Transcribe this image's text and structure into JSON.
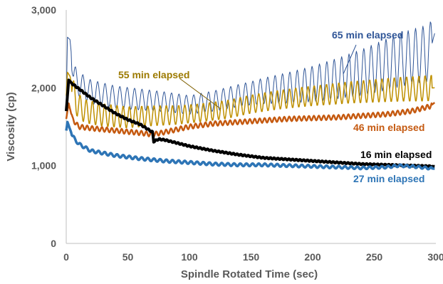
{
  "chart_data": {
    "type": "line",
    "xlabel": "Spindle Rotated Time (sec)",
    "ylabel": "Viscosity (cp)",
    "xlim": [
      0,
      300
    ],
    "ylim": [
      0,
      3000
    ],
    "x_ticks": [
      0,
      50,
      100,
      150,
      200,
      250,
      300
    ],
    "y_ticks": [
      0,
      1000,
      2000,
      3000
    ],
    "x_tick_labels": [
      "0",
      "50",
      "100",
      "150",
      "200",
      "250",
      "300"
    ],
    "y_tick_labels": [
      "0",
      "1,000",
      "2,000",
      "3,000"
    ],
    "grid": false,
    "series": [
      {
        "name": "65 min elapsed",
        "color": "#2f5597",
        "stroke_width": 1,
        "oscillation": {
          "period": 6,
          "amplitude": [
            [
              0,
              160
            ],
            [
              100,
              120
            ],
            [
              150,
              150
            ],
            [
              220,
              260
            ],
            [
              260,
              330
            ],
            [
              300,
              370
            ]
          ]
        },
        "points": [
          [
            0,
            1850
          ],
          [
            1,
            2650
          ],
          [
            3,
            2620
          ],
          [
            6,
            2150
          ],
          [
            10,
            2050
          ],
          [
            20,
            1950
          ],
          [
            40,
            1880
          ],
          [
            60,
            1850
          ],
          [
            80,
            1820
          ],
          [
            100,
            1780
          ],
          [
            120,
            1830
          ],
          [
            140,
            1900
          ],
          [
            160,
            1960
          ],
          [
            180,
            2000
          ],
          [
            200,
            2050
          ],
          [
            220,
            2120
          ],
          [
            240,
            2200
          ],
          [
            260,
            2300
          ],
          [
            280,
            2400
          ],
          [
            295,
            2450
          ],
          [
            299,
            2700
          ]
        ]
      },
      {
        "name": "55 min elapsed",
        "color": "#bf9000",
        "stroke_width": 1.5,
        "oscillation": {
          "period": 5,
          "amplitude": [
            [
              0,
              160
            ],
            [
              100,
              120
            ],
            [
              150,
              120
            ],
            [
              200,
              130
            ],
            [
              250,
              150
            ],
            [
              300,
              170
            ]
          ]
        },
        "points": [
          [
            0,
            1900
          ],
          [
            1,
            2200
          ],
          [
            3,
            2150
          ],
          [
            8,
            1800
          ],
          [
            15,
            1700
          ],
          [
            30,
            1650
          ],
          [
            50,
            1620
          ],
          [
            70,
            1640
          ],
          [
            90,
            1650
          ],
          [
            110,
            1680
          ],
          [
            130,
            1720
          ],
          [
            150,
            1790
          ],
          [
            170,
            1840
          ],
          [
            190,
            1880
          ],
          [
            210,
            1910
          ],
          [
            230,
            1940
          ],
          [
            250,
            1960
          ],
          [
            270,
            1980
          ],
          [
            290,
            1990
          ],
          [
            299,
            2000
          ]
        ]
      },
      {
        "name": "46 min elapsed",
        "color": "#c55a11",
        "stroke_width": 2.5,
        "oscillation": {
          "period": 4,
          "amplitude": [
            [
              0,
              30
            ],
            [
              300,
              30
            ]
          ]
        },
        "points": [
          [
            0,
            1600
          ],
          [
            2,
            1800
          ],
          [
            5,
            1600
          ],
          [
            10,
            1500
          ],
          [
            20,
            1480
          ],
          [
            40,
            1450
          ],
          [
            60,
            1420
          ],
          [
            70,
            1400
          ],
          [
            80,
            1430
          ],
          [
            100,
            1500
          ],
          [
            120,
            1540
          ],
          [
            140,
            1560
          ],
          [
            160,
            1580
          ],
          [
            180,
            1600
          ],
          [
            200,
            1610
          ],
          [
            220,
            1620
          ],
          [
            240,
            1640
          ],
          [
            260,
            1660
          ],
          [
            280,
            1700
          ],
          [
            295,
            1760
          ],
          [
            299,
            1810
          ]
        ]
      },
      {
        "name": "16 min elapsed",
        "color": "#000000",
        "stroke_width": 4,
        "oscillation": {
          "period": 3,
          "amplitude": [
            [
              0,
              10
            ],
            [
              300,
              8
            ]
          ]
        },
        "points": [
          [
            0,
            1700
          ],
          [
            2,
            2100
          ],
          [
            5,
            2050
          ],
          [
            10,
            1990
          ],
          [
            20,
            1870
          ],
          [
            30,
            1770
          ],
          [
            40,
            1670
          ],
          [
            50,
            1590
          ],
          [
            60,
            1530
          ],
          [
            70,
            1430
          ],
          [
            71,
            1310
          ],
          [
            75,
            1340
          ],
          [
            80,
            1330
          ],
          [
            90,
            1290
          ],
          [
            100,
            1250
          ],
          [
            120,
            1190
          ],
          [
            140,
            1140
          ],
          [
            160,
            1100
          ],
          [
            180,
            1080
          ],
          [
            200,
            1060
          ],
          [
            220,
            1040
          ],
          [
            240,
            1020
          ],
          [
            260,
            1010
          ],
          [
            280,
            1000
          ],
          [
            299,
            990
          ]
        ]
      },
      {
        "name": "27 min elapsed",
        "color": "#2e75b6",
        "stroke_width": 3.5,
        "oscillation": {
          "period": 5,
          "amplitude": [
            [
              0,
              20
            ],
            [
              300,
              15
            ]
          ]
        },
        "points": [
          [
            0,
            1450
          ],
          [
            1,
            1560
          ],
          [
            5,
            1380
          ],
          [
            10,
            1280
          ],
          [
            20,
            1190
          ],
          [
            40,
            1130
          ],
          [
            60,
            1090
          ],
          [
            80,
            1060
          ],
          [
            100,
            1040
          ],
          [
            120,
            1020
          ],
          [
            140,
            1010
          ],
          [
            160,
            1010
          ],
          [
            180,
            1000
          ],
          [
            200,
            990
          ],
          [
            220,
            980
          ],
          [
            240,
            970
          ],
          [
            260,
            980
          ],
          [
            270,
            1000
          ],
          [
            280,
            990
          ],
          [
            299,
            960
          ]
        ]
      }
    ]
  },
  "labels": {
    "s65": "65 min elapsed",
    "s55": "55 min elapsed",
    "s46": "46 min elapsed",
    "s16": "16 min elapsed",
    "s27": "27 min elapsed"
  }
}
